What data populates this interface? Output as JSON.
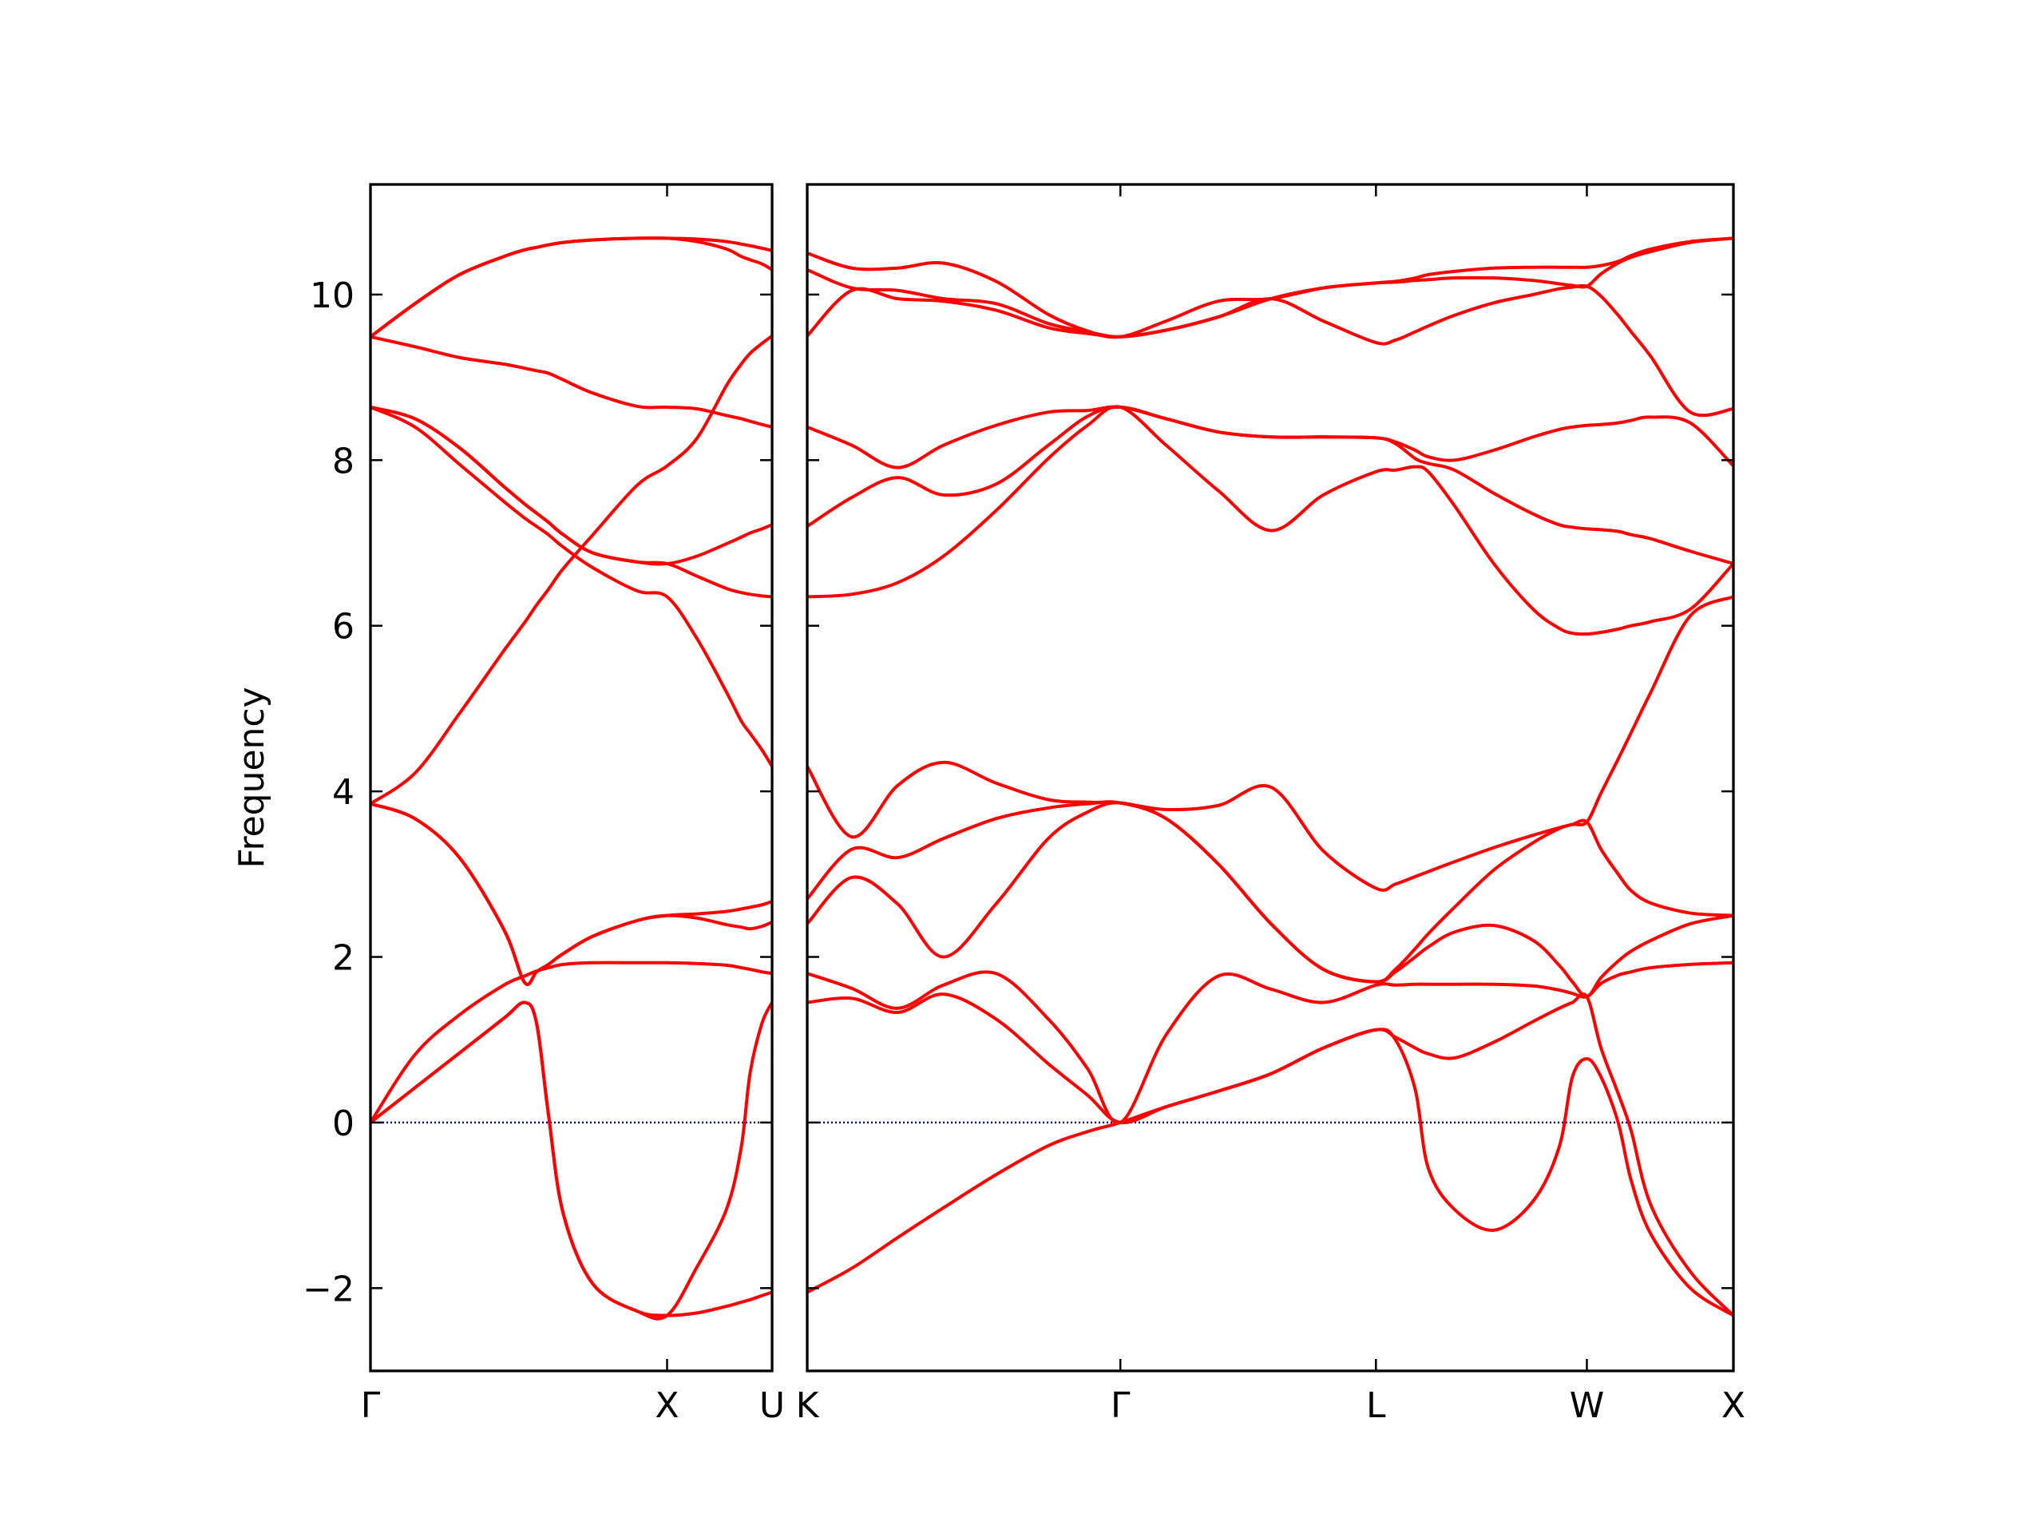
{
  "chart_data": [
    {
      "type": "line",
      "ylabel": "Frequency",
      "x": [
        0,
        0.15,
        0.3,
        0.45,
        0.52,
        0.56,
        0.6,
        0.65,
        0.75,
        0.9,
        1.0,
        1.1,
        1.2,
        1.25,
        1.28,
        1.32,
        1.354
      ],
      "xlim": [
        0,
        1.354
      ],
      "xticks": [
        {
          "value": 0,
          "label": "Γ"
        },
        {
          "value": 1.0,
          "label": "X"
        },
        {
          "value": 1.354,
          "label": "U"
        }
      ],
      "ylim": [
        -3,
        11.33
      ],
      "yticks": [
        {
          "value": -2,
          "label": "−2"
        },
        0,
        2,
        4,
        6,
        8,
        10
      ],
      "reference_line": {
        "y": 0,
        "color": "#0000aa",
        "style": "dotted"
      },
      "series": [
        {
          "color": "#ff0000",
          "values": [
            0,
            0.42,
            0.84,
            1.26,
            1.45,
            1.2,
            0.1,
            -1.1,
            -1.95,
            -2.28,
            -2.33,
            -2.3,
            -2.22,
            -2.17,
            -2.14,
            -2.09,
            -2.05
          ]
        },
        {
          "color": "#ff0000",
          "values": [
            0,
            0.42,
            0.84,
            1.26,
            1.45,
            1.2,
            0.1,
            -1.1,
            -1.95,
            -2.28,
            -2.33,
            -1.75,
            -1.05,
            -0.3,
            0.6,
            1.2,
            1.45
          ]
        },
        {
          "color": "#ff0000",
          "values": [
            0,
            0.82,
            1.3,
            1.66,
            1.77,
            1.83,
            1.87,
            1.91,
            1.93,
            1.93,
            1.93,
            1.92,
            1.9,
            1.87,
            1.85,
            1.82,
            1.8
          ]
        },
        {
          "color": "#ff0000",
          "values": [
            3.85,
            3.67,
            3.2,
            2.33,
            1.69,
            1.82,
            1.91,
            2.04,
            2.25,
            2.44,
            2.5,
            2.52,
            2.55,
            2.58,
            2.6,
            2.63,
            2.67
          ]
        },
        {
          "color": "#ff0000",
          "values": [
            3.85,
            3.67,
            3.2,
            2.33,
            1.69,
            1.82,
            1.91,
            2.04,
            2.25,
            2.44,
            2.5,
            2.47,
            2.39,
            2.36,
            2.34,
            2.37,
            2.42
          ]
        },
        {
          "color": "#ff0000",
          "values": [
            3.85,
            4.22,
            4.94,
            5.7,
            6.04,
            6.25,
            6.44,
            6.69,
            7.1,
            7.7,
            7.93,
            8.26,
            8.9,
            9.16,
            9.29,
            9.41,
            9.5
          ]
        },
        {
          "color": "#ff0000",
          "values": [
            8.64,
            8.5,
            8.15,
            7.68,
            7.47,
            7.36,
            7.25,
            7.1,
            6.88,
            6.77,
            6.75,
            6.84,
            6.99,
            7.07,
            7.12,
            7.17,
            7.22
          ]
        },
        {
          "color": "#ff0000",
          "values": [
            8.64,
            8.4,
            7.95,
            7.5,
            7.3,
            7.2,
            7.1,
            6.95,
            6.7,
            6.42,
            6.35,
            5.85,
            5.2,
            4.85,
            4.7,
            4.5,
            4.3
          ]
        },
        {
          "color": "#ff0000",
          "values": [
            8.64,
            8.5,
            8.15,
            7.68,
            7.47,
            7.36,
            7.25,
            7.1,
            6.88,
            6.77,
            6.75,
            6.6,
            6.45,
            6.4,
            6.38,
            6.36,
            6.35
          ]
        },
        {
          "color": "#ff0000",
          "values": [
            9.49,
            9.37,
            9.24,
            9.16,
            9.11,
            9.08,
            9.05,
            8.97,
            8.81,
            8.65,
            8.64,
            8.62,
            8.54,
            8.5,
            8.47,
            8.43,
            8.4
          ]
        },
        {
          "color": "#ff0000",
          "values": [
            9.49,
            9.89,
            10.24,
            10.46,
            10.54,
            10.57,
            10.6,
            10.63,
            10.66,
            10.68,
            10.68,
            10.67,
            10.64,
            10.61,
            10.59,
            10.56,
            10.53
          ]
        },
        {
          "color": "#ff0000",
          "values": [
            9.49,
            9.89,
            10.24,
            10.46,
            10.54,
            10.57,
            10.6,
            10.63,
            10.66,
            10.68,
            10.68,
            10.64,
            10.55,
            10.46,
            10.42,
            10.37,
            10.3
          ]
        }
      ]
    },
    {
      "type": "line",
      "x": [
        1.354,
        1.505,
        1.66,
        1.815,
        1.993,
        2.17,
        2.303,
        2.414,
        2.569,
        2.746,
        2.924,
        3.101,
        3.279,
        3.345,
        3.412,
        3.456,
        3.545,
        3.678,
        3.811,
        3.899,
        3.944,
        3.993,
        4.041,
        4.099,
        4.143,
        4.21,
        4.343,
        4.489
      ],
      "xlim": [
        1.354,
        4.489
      ],
      "xticks": [
        {
          "value": 1.354,
          "label": "K"
        },
        {
          "value": 2.414,
          "label": "Γ"
        },
        {
          "value": 3.279,
          "label": "L"
        },
        {
          "value": 3.993,
          "label": "W"
        },
        {
          "value": 4.489,
          "label": "X"
        }
      ],
      "ylim": [
        -3,
        11.33
      ],
      "yticks": [
        -2,
        0,
        2,
        4,
        6,
        8,
        10
      ],
      "ytick_labels": false,
      "reference_line": {
        "y": 0,
        "color": "#0000aa",
        "style": "dotted"
      },
      "series": [
        {
          "color": "#ff0000",
          "values": [
            -2.05,
            -1.76,
            -1.39,
            -1.03,
            -0.63,
            -0.28,
            -0.11,
            0,
            0.19,
            0.38,
            0.59,
            0.9,
            1.12,
            1.0,
            0.4,
            -0.55,
            -1.05,
            -1.3,
            -0.95,
            -0.3,
            0.55,
            0.77,
            0.55,
            0.0,
            -0.7,
            -1.35,
            -2.0,
            -2.33
          ]
        },
        {
          "color": "#ff0000",
          "values": [
            1.45,
            1.5,
            1.33,
            1.55,
            1.25,
            0.71,
            0.33,
            0,
            0.19,
            0.38,
            0.59,
            0.9,
            1.12,
            1.03,
            0.9,
            0.83,
            0.78,
            0.97,
            1.22,
            1.38,
            1.45,
            1.52,
            0.9,
            0.35,
            -0.1,
            -1.0,
            -1.8,
            -2.33
          ]
        },
        {
          "color": "#ff0000",
          "values": [
            1.8,
            1.62,
            1.38,
            1.66,
            1.8,
            1.25,
            0.65,
            0,
            1.06,
            1.77,
            1.61,
            1.45,
            1.66,
            1.66,
            1.67,
            1.67,
            1.67,
            1.67,
            1.65,
            1.6,
            1.56,
            1.52,
            1.68,
            1.78,
            1.82,
            1.87,
            1.91,
            1.93
          ]
        },
        {
          "color": "#ff0000",
          "values": [
            2.4,
            2.96,
            2.64,
            2.0,
            2.64,
            3.43,
            3.75,
            3.86,
            3.67,
            3.12,
            2.4,
            1.85,
            1.7,
            1.82,
            2.0,
            2.12,
            2.3,
            2.38,
            2.2,
            1.9,
            1.7,
            1.52,
            1.75,
            1.95,
            2.07,
            2.2,
            2.4,
            2.5
          ]
        },
        {
          "color": "#ff0000",
          "values": [
            2.7,
            3.3,
            3.2,
            3.43,
            3.67,
            3.8,
            3.85,
            3.86,
            3.67,
            3.12,
            2.4,
            1.85,
            1.7,
            1.85,
            2.1,
            2.28,
            2.6,
            3.05,
            3.38,
            3.55,
            3.6,
            3.63,
            3.3,
            3.0,
            2.8,
            2.65,
            2.53,
            2.5
          ]
        },
        {
          "color": "#ff0000",
          "values": [
            4.3,
            3.45,
            4.07,
            4.35,
            4.1,
            3.9,
            3.87,
            3.86,
            3.78,
            3.83,
            4.05,
            3.28,
            2.83,
            2.88,
            2.97,
            3.03,
            3.15,
            3.32,
            3.47,
            3.56,
            3.6,
            3.63,
            3.98,
            4.39,
            4.71,
            5.2,
            6.12,
            6.35
          ]
        },
        {
          "color": "#ff0000",
          "values": [
            6.35,
            6.38,
            6.52,
            6.84,
            7.39,
            8.02,
            8.42,
            8.64,
            8.18,
            7.63,
            7.15,
            7.58,
            7.86,
            7.88,
            7.92,
            7.86,
            7.45,
            6.75,
            6.2,
            5.97,
            5.91,
            5.9,
            5.92,
            5.96,
            6.0,
            6.05,
            6.2,
            6.75
          ]
        },
        {
          "color": "#ff0000",
          "values": [
            7.2,
            7.55,
            7.79,
            7.58,
            7.71,
            8.18,
            8.53,
            8.64,
            8.5,
            8.34,
            8.28,
            8.28,
            8.27,
            8.2,
            8.02,
            7.96,
            7.88,
            7.6,
            7.35,
            7.22,
            7.19,
            7.17,
            7.16,
            7.14,
            7.1,
            7.05,
            6.9,
            6.75
          ]
        },
        {
          "color": "#ff0000",
          "values": [
            8.4,
            8.18,
            7.91,
            8.18,
            8.42,
            8.58,
            8.6,
            8.64,
            8.5,
            8.34,
            8.28,
            8.28,
            8.27,
            8.22,
            8.12,
            8.04,
            8.0,
            8.12,
            8.28,
            8.37,
            8.4,
            8.42,
            8.43,
            8.45,
            8.48,
            8.52,
            8.45,
            7.93
          ]
        },
        {
          "color": "#ff0000",
          "values": [
            9.5,
            10.05,
            9.95,
            9.92,
            9.81,
            9.6,
            9.53,
            9.49,
            9.57,
            9.73,
            9.95,
            9.68,
            9.42,
            9.45,
            9.55,
            9.62,
            9.75,
            9.9,
            10.0,
            10.07,
            10.09,
            10.1,
            9.98,
            9.75,
            9.55,
            9.25,
            8.58,
            8.62
          ]
        },
        {
          "color": "#ff0000",
          "values": [
            10.3,
            10.08,
            10.05,
            9.95,
            9.89,
            9.65,
            9.55,
            9.49,
            9.57,
            9.73,
            9.95,
            10.08,
            10.14,
            10.15,
            10.17,
            10.18,
            10.2,
            10.2,
            10.17,
            10.13,
            10.11,
            10.1,
            10.25,
            10.38,
            10.45,
            10.52,
            10.63,
            10.68
          ]
        },
        {
          "color": "#ff0000",
          "values": [
            10.5,
            10.32,
            10.32,
            10.38,
            10.16,
            9.76,
            9.56,
            9.49,
            9.68,
            9.92,
            9.95,
            10.08,
            10.14,
            10.16,
            10.2,
            10.24,
            10.28,
            10.32,
            10.33,
            10.33,
            10.33,
            10.33,
            10.35,
            10.4,
            10.47,
            10.55,
            10.64,
            10.68
          ]
        }
      ]
    }
  ]
}
